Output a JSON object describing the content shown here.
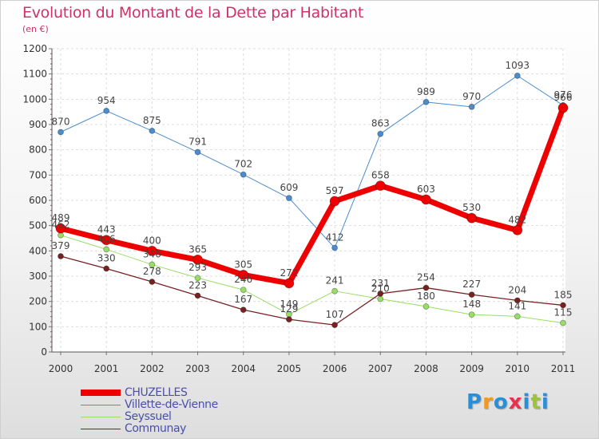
{
  "chart_data": {
    "type": "line",
    "title": "Evolution du Montant de la Dette par Habitant",
    "subtitle": "(en €)",
    "x": [
      "2000",
      "2001",
      "2002",
      "2003",
      "2004",
      "2005",
      "2006",
      "2007",
      "2008",
      "2009",
      "2010",
      "2011"
    ],
    "y_ticks": [
      "0",
      "100",
      "200",
      "300",
      "400",
      "500",
      "600",
      "700",
      "800",
      "900",
      "1000",
      "1100",
      "1200"
    ],
    "ylim": [
      0,
      1200
    ],
    "grid": true,
    "legend_position": "bottom-left",
    "series": [
      {
        "name": "CHUZELLES",
        "color": "#ee0000",
        "values": [
          489,
          443,
          400,
          365,
          305,
          272,
          597,
          658,
          603,
          530,
          482,
          966
        ]
      },
      {
        "name": "Villette-de-Vienne",
        "color": "#4a8ccc",
        "values": [
          870,
          954,
          875,
          791,
          702,
          609,
          412,
          863,
          989,
          970,
          1093,
          976
        ]
      },
      {
        "name": "Seyssuel",
        "color": "#99dd66",
        "values": [
          462,
          406,
          346,
          293,
          246,
          149,
          241,
          210,
          180,
          148,
          141,
          115
        ]
      },
      {
        "name": "Communay",
        "color": "#772222",
        "values": [
          379,
          330,
          278,
          223,
          167,
          129,
          107,
          231,
          254,
          227,
          204,
          185
        ]
      }
    ]
  },
  "logo": {
    "letters": [
      "P",
      "r",
      "o",
      "x",
      "i",
      "t",
      "i"
    ],
    "colors": [
      "#2a8fd6",
      "#f29a1b",
      "#2a8fd6",
      "#e6334d",
      "#2a8fd6",
      "#9bc43a",
      "#2a8fd6"
    ]
  }
}
